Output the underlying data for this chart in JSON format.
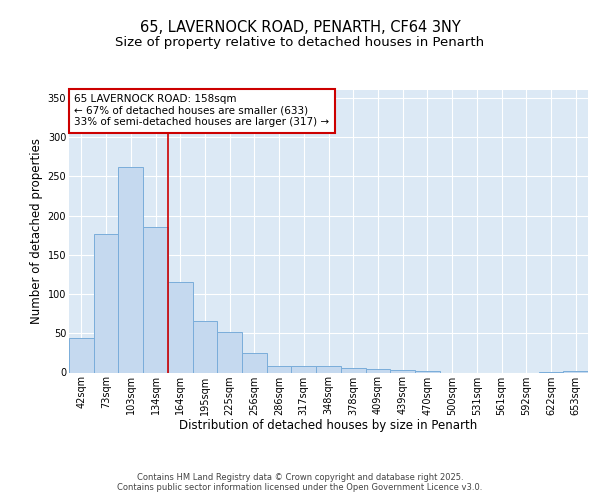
{
  "title1": "65, LAVERNOCK ROAD, PENARTH, CF64 3NY",
  "title2": "Size of property relative to detached houses in Penarth",
  "xlabel": "Distribution of detached houses by size in Penarth",
  "ylabel": "Number of detached properties",
  "bin_labels": [
    "42sqm",
    "73sqm",
    "103sqm",
    "134sqm",
    "164sqm",
    "195sqm",
    "225sqm",
    "256sqm",
    "286sqm",
    "317sqm",
    "348sqm",
    "378sqm",
    "409sqm",
    "439sqm",
    "470sqm",
    "500sqm",
    "531sqm",
    "561sqm",
    "592sqm",
    "622sqm",
    "653sqm"
  ],
  "bar_heights": [
    44,
    176,
    262,
    185,
    115,
    65,
    51,
    25,
    8,
    8,
    8,
    6,
    5,
    3,
    2,
    0,
    0,
    0,
    0,
    1,
    2
  ],
  "bar_color": "#c5d9ef",
  "bar_edge_color": "#7aadda",
  "property_line_color": "#cc0000",
  "annotation_text": "65 LAVERNOCK ROAD: 158sqm\n← 67% of detached houses are smaller (633)\n33% of semi-detached houses are larger (317) →",
  "annotation_box_color": "#ffffff",
  "annotation_box_edge": "#cc0000",
  "ylim": [
    0,
    360
  ],
  "yticks": [
    0,
    50,
    100,
    150,
    200,
    250,
    300,
    350
  ],
  "background_color": "#dce9f5",
  "grid_color": "#ffffff",
  "fig_background": "#ffffff",
  "footer_text": "Contains HM Land Registry data © Crown copyright and database right 2025.\nContains public sector information licensed under the Open Government Licence v3.0.",
  "title1_fontsize": 10.5,
  "title2_fontsize": 9.5,
  "axis_label_fontsize": 8.5,
  "tick_fontsize": 7,
  "annotation_fontsize": 7.5,
  "footer_fontsize": 6
}
